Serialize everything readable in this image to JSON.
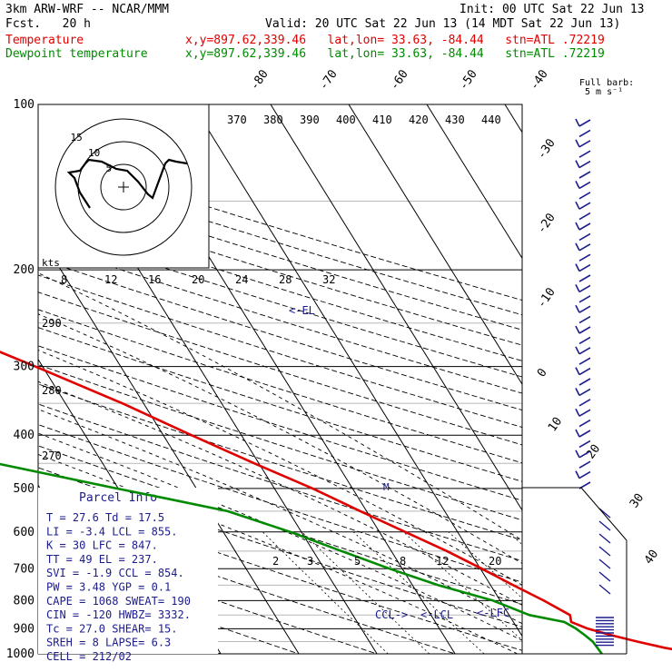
{
  "header": {
    "model": "3km ARW-WRF -- NCAR/MMM",
    "init": "Init: 00 UTC Sat 22 Jun 13",
    "fcst": "Fcst.   20 h",
    "valid": "Valid: 20 UTC Sat 22 Jun 13 (14 MDT Sat 22 Jun 13)",
    "temp_label": "Temperature",
    "temp_loc": "x,y=897.62,339.46   lat,lon= 33.63, -84.44   stn=ATL .72219",
    "dew_label": "Dewpoint temperature",
    "dew_loc": "x,y=897.62,339.46   lat,lon= 33.63, -84.44   stn=ATL .72219"
  },
  "full_barb": {
    "line1": "Full barb:",
    "line2": "5 m s⁻¹"
  },
  "parcel": {
    "title": "Parcel Info",
    "rows": [
      "T  =   27.6 Td =  17.5",
      "LI =   -3.4 LCL =  855.",
      "K  =     30 LFC = 847.",
      "TT =     49 EL  =  237.",
      "SVI =  -1.9 CCL =  854.",
      "PW =   3.48 YGP =   0.1",
      "CAPE =  1068 SWEAT=  190",
      "CIN  =  -120 HWBZ= 3332.",
      "Tc =   27.0 SHEAR=  15.",
      "SREH =     8 LAPSE=  6.3",
      "CELL = 212/02"
    ]
  },
  "hodograph": {
    "unit": "kts",
    "ring_labels": [
      "5",
      "10",
      "15"
    ]
  },
  "annotations": {
    "el": "<-EL",
    "ccl": "CCL->",
    "lcl": "<-LCL",
    "lfc": "<-LFC"
  },
  "colors": {
    "temperature": "#e00000",
    "dewpoint": "#008a00",
    "annotation": "#1c1c8c",
    "grid": "#000000"
  },
  "chart_data": {
    "type": "line",
    "title": "",
    "xlabel": "",
    "ylabel": "",
    "x_scale": "skew-T temperature (°C)",
    "y_scale": "log pressure (hPa)",
    "ylim": [
      1000,
      100
    ],
    "pressure_ticks": [
      100,
      200,
      300,
      400,
      500,
      600,
      700,
      800,
      900,
      1000
    ],
    "temperature_ticks": [
      -80,
      -70,
      -60,
      -50,
      -40,
      -30,
      -20,
      -10,
      0,
      10,
      20,
      30,
      40
    ],
    "theta_labels": [
      370,
      380,
      390,
      400,
      410,
      420,
      430,
      440
    ],
    "theta_left_labels": [
      290,
      280,
      270
    ],
    "theta_e_labels": [
      8,
      12,
      16,
      20,
      24,
      28,
      32
    ],
    "mixing_ratio_labels": [
      2,
      3,
      5,
      8,
      12,
      20
    ],
    "series": [
      {
        "name": "Temperature",
        "color": "#e00000",
        "points": [
          [
            1000,
            31.0
          ],
          [
            975,
            27.3
          ],
          [
            950,
            24.3
          ],
          [
            925,
            21.5
          ],
          [
            900,
            19.0
          ],
          [
            875,
            17.4
          ],
          [
            850,
            17.8
          ],
          [
            800,
            15.6
          ],
          [
            750,
            12.9
          ],
          [
            700,
            10.2
          ],
          [
            650,
            7.1
          ],
          [
            600,
            3.3
          ],
          [
            550,
            -0.8
          ],
          [
            500,
            -5.1
          ],
          [
            450,
            -10.6
          ],
          [
            400,
            -16.4
          ],
          [
            350,
            -22.7
          ],
          [
            300,
            -30.9
          ],
          [
            250,
            -41.0
          ],
          [
            220,
            -48.4
          ],
          [
            200,
            -53.3
          ],
          [
            175,
            -57.0
          ],
          [
            150,
            -62.0
          ],
          [
            125,
            -65.4
          ],
          [
            110,
            -65.8
          ],
          [
            100,
            -66.2
          ]
        ]
      },
      {
        "name": "Dewpoint temperature",
        "color": "#008a00",
        "points": [
          [
            1000,
            18.8
          ],
          [
            950,
            18.6
          ],
          [
            925,
            18.1
          ],
          [
            900,
            17.5
          ],
          [
            875,
            16.5
          ],
          [
            850,
            12.6
          ],
          [
            800,
            9.1
          ],
          [
            750,
            3.3
          ],
          [
            700,
            -1.6
          ],
          [
            650,
            -6.4
          ],
          [
            600,
            -11.4
          ],
          [
            550,
            -17.8
          ],
          [
            520,
            -25.0
          ],
          [
            500,
            -30.2
          ],
          [
            450,
            -43.6
          ],
          [
            400,
            -50.5
          ],
          [
            350,
            -57.6
          ],
          [
            300,
            -59.8
          ],
          [
            250,
            -65.9
          ],
          [
            220,
            -72.8
          ],
          [
            200,
            -79.8
          ],
          [
            180,
            -80.5
          ],
          [
            150,
            -80.8
          ],
          [
            125,
            -80.0
          ],
          [
            110,
            -79.5
          ],
          [
            100,
            -79.8
          ]
        ]
      }
    ]
  }
}
